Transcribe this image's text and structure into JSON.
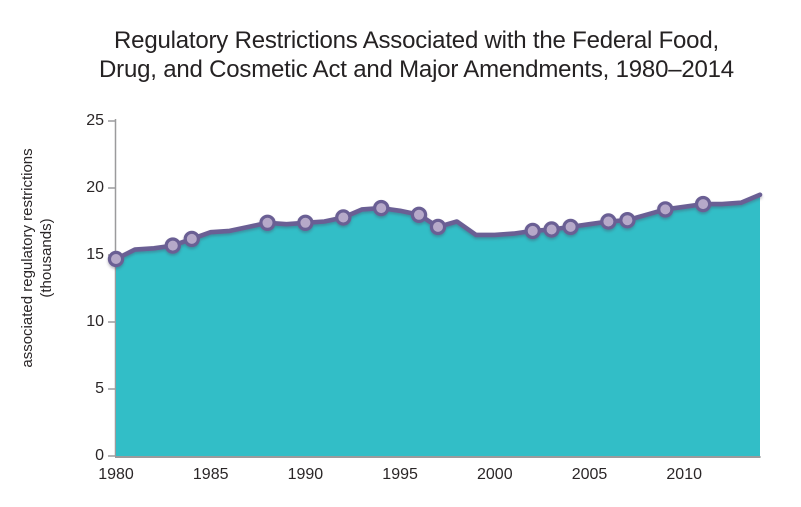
{
  "title": {
    "line1": "Regulatory Restrictions Associated with the Federal Food,",
    "line2": "Drug, and Cosmetic Act and Major Amendments, 1980–2014"
  },
  "chart_data": {
    "type": "area",
    "title": "Regulatory Restrictions Associated with the Federal Food, Drug, and Cosmetic Act and Major Amendments, 1980–2014",
    "ylabel_line1": "associated regulatory restrictions",
    "ylabel_line2": "(thousands)",
    "xlabel": "",
    "x": [
      1980,
      1981,
      1982,
      1983,
      1984,
      1985,
      1986,
      1987,
      1988,
      1989,
      1990,
      1991,
      1992,
      1993,
      1994,
      1995,
      1996,
      1997,
      1998,
      1999,
      2000,
      2001,
      2002,
      2003,
      2004,
      2005,
      2006,
      2007,
      2008,
      2009,
      2010,
      2011,
      2012,
      2013,
      2014
    ],
    "values": [
      14.7,
      15.4,
      15.5,
      15.7,
      16.2,
      16.7,
      16.8,
      17.1,
      17.4,
      17.3,
      17.4,
      17.5,
      17.8,
      18.4,
      18.5,
      18.3,
      18.0,
      17.1,
      17.5,
      16.5,
      16.5,
      16.6,
      16.8,
      16.9,
      17.1,
      17.3,
      17.5,
      17.6,
      18.0,
      18.4,
      18.6,
      18.8,
      18.8,
      18.9,
      19.5
    ],
    "marker_years": [
      1980,
      1983,
      1984,
      1988,
      1990,
      1992,
      1994,
      1996,
      1997,
      2002,
      2003,
      2004,
      2006,
      2007,
      2009,
      2011
    ],
    "xlim": [
      1980,
      2014
    ],
    "ylim": [
      0,
      25
    ],
    "grid": "off",
    "legend": "none",
    "ytick_labels": [
      "25",
      "20",
      "15",
      "10",
      "5",
      "0"
    ],
    "xtick_labels": [
      "1980",
      "1985",
      "1990",
      "1995",
      "2000",
      "2005",
      "2010"
    ],
    "colors": {
      "area_fill": "#32BEC7",
      "line": "#6B5F94",
      "marker_fill": "#B6A9C9",
      "marker_stroke": "#6B5F94",
      "axis": "#9B9B9D",
      "text": "#252223"
    }
  }
}
